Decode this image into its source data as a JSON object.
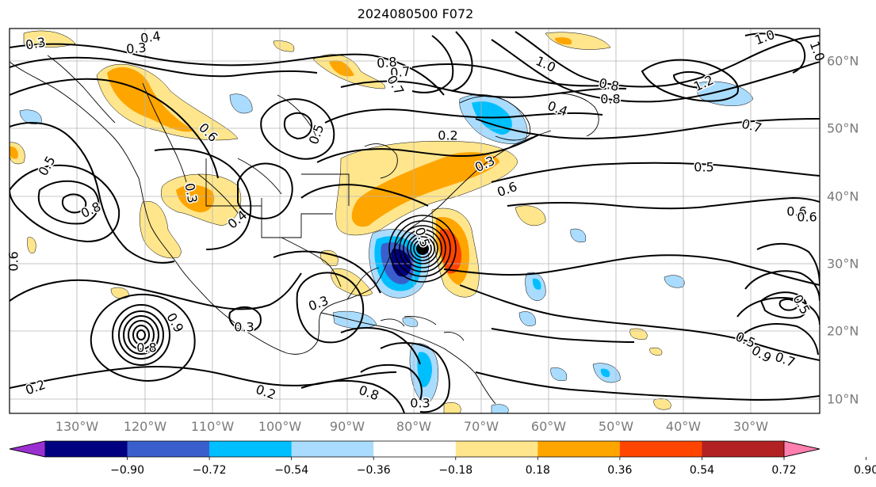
{
  "title": "2024080500 F072",
  "map": {
    "lon_labels": [
      "130°W",
      "120°W",
      "110°W",
      "100°W",
      "90°W",
      "80°W",
      "70°W",
      "60°W",
      "50°W",
      "40°W",
      "30°W"
    ],
    "lat_labels": [
      "60°N",
      "50°N",
      "40°N",
      "30°N",
      "20°N",
      "10°N"
    ]
  },
  "colorbar": {
    "ticks": [
      "−0.90",
      "−0.72",
      "−0.54",
      "−0.36",
      "−0.18",
      "0.18",
      "0.36",
      "0.54",
      "0.72",
      "0.90"
    ],
    "colors": [
      "#9b30d0",
      "#000080",
      "#3a5fcd",
      "#00bfff",
      "#aadcff",
      "#ffffff",
      "#ffe68c",
      "#ffa500",
      "#ff4500",
      "#b22222",
      "#ff7fae"
    ]
  },
  "shading_colors": {
    "neg_light": "#aadcff",
    "neg_mid": "#00bfff",
    "neg_dark": "#3a5fcd",
    "neg_darkest": "#000080",
    "pos_light": "#ffe68c",
    "pos_mid": "#ffa500",
    "pos_dark": "#ff4500"
  },
  "contour_labels": [
    {
      "text": "0.3"
    },
    {
      "text": "0.4"
    },
    {
      "text": "0.3"
    },
    {
      "text": "0.8"
    },
    {
      "text": "0.7"
    },
    {
      "text": "0.8"
    },
    {
      "text": "1.0"
    },
    {
      "text": "1.0"
    },
    {
      "text": "0.8"
    },
    {
      "text": "0.6"
    },
    {
      "text": "1.2"
    },
    {
      "text": "0.4"
    },
    {
      "text": "0.7"
    },
    {
      "text": "0.2"
    },
    {
      "text": "0.5"
    },
    {
      "text": "0.3"
    },
    {
      "text": "0.6"
    },
    {
      "text": "0.5"
    },
    {
      "text": "0.6"
    },
    {
      "text": "0.8"
    },
    {
      "text": "0.3"
    },
    {
      "text": "0.4"
    },
    {
      "text": "0.3"
    },
    {
      "text": "0.3"
    },
    {
      "text": "0.2"
    },
    {
      "text": "0.2"
    },
    {
      "text": "0.8"
    },
    {
      "text": "0.3"
    },
    {
      "text": "0.7"
    },
    {
      "text": "0.5"
    },
    {
      "text": "0.6"
    },
    {
      "text": "0.5"
    },
    {
      "text": "0.7"
    },
    {
      "text": "0.9"
    },
    {
      "text": "0.5"
    },
    {
      "text": "1.0"
    },
    {
      "text": "0.6"
    },
    {
      "text": "0.9"
    },
    {
      "text": "0.8"
    },
    {
      "text": "0.5"
    }
  ]
}
